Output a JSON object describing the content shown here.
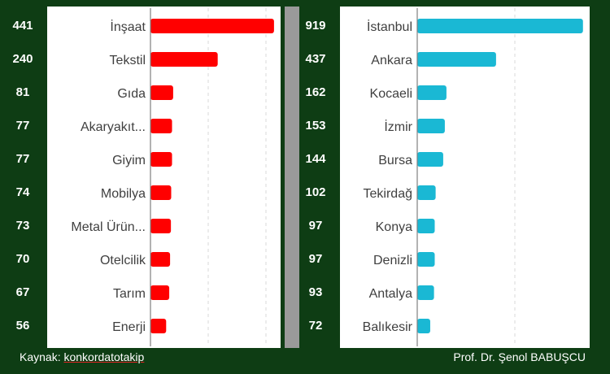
{
  "chart_data": [
    {
      "type": "bar",
      "orientation": "horizontal",
      "categories": [
        "İnşaat",
        "Tekstil",
        "Gıda",
        "Akaryakıt...",
        "Giyim",
        "Mobilya",
        "Metal Ürün...",
        "Otelcilik",
        "Tarım",
        "Enerji"
      ],
      "values": [
        441,
        240,
        81,
        77,
        77,
        74,
        73,
        70,
        67,
        56
      ],
      "xlim": [
        0,
        450
      ],
      "grid": true,
      "color": "#ff0000",
      "data_labels": "left-outside"
    },
    {
      "type": "bar",
      "orientation": "horizontal",
      "categories": [
        "İstanbul",
        "Ankara",
        "Kocaeli",
        "İzmir",
        "Bursa",
        "Tekirdağ",
        "Konya",
        "Denizli",
        "Antalya",
        "Balıkesir"
      ],
      "values": [
        919,
        437,
        162,
        153,
        144,
        102,
        97,
        97,
        93,
        72
      ],
      "xlim": [
        0,
        920
      ],
      "grid": true,
      "color": "#1ab8d4",
      "data_labels": "left-outside"
    }
  ],
  "footer": {
    "source_prefix": "Kaynak: ",
    "source_name": "konkordatotakip",
    "author": "Prof. Dr. Şenol BABUŞCU"
  }
}
